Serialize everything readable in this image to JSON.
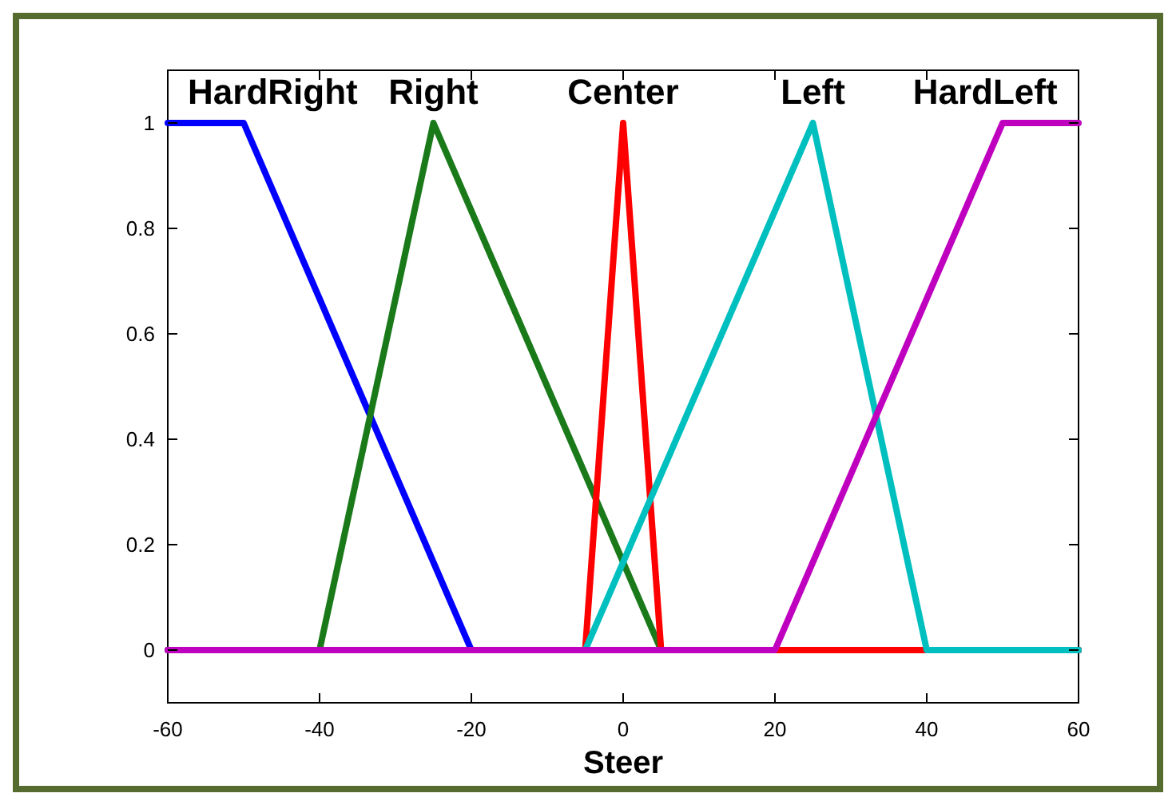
{
  "chart_data": {
    "type": "line",
    "xlabel": "Steer",
    "xlim": [
      -60,
      60
    ],
    "xticks": [
      -60,
      -40,
      -20,
      0,
      20,
      40,
      60
    ],
    "ylim": [
      -0.1,
      1.1
    ],
    "yticks": [
      0,
      0.2,
      0.4,
      0.6,
      0.8,
      1
    ],
    "grid": false,
    "line_style": "solid",
    "series": [
      {
        "name": "HardRight",
        "color": "#0000ff",
        "x": [
          -60,
          -50,
          -20,
          60
        ],
        "values": [
          1,
          1,
          0,
          0
        ]
      },
      {
        "name": "Right",
        "color": "#1a7a1a",
        "x": [
          -60,
          -40,
          -25,
          5,
          60
        ],
        "values": [
          0,
          0,
          1,
          0,
          0
        ]
      },
      {
        "name": "Center",
        "color": "#ff0000",
        "x": [
          -60,
          -5,
          0,
          5,
          60
        ],
        "values": [
          0,
          0,
          1,
          0,
          0
        ]
      },
      {
        "name": "Left",
        "color": "#00bfbf",
        "x": [
          -60,
          -5,
          25,
          40,
          60
        ],
        "values": [
          0,
          0,
          1,
          0,
          0
        ]
      },
      {
        "name": "HardLeft",
        "color": "#bf00bf",
        "x": [
          -60,
          20,
          50,
          60
        ],
        "values": [
          0,
          0,
          1,
          1
        ]
      }
    ]
  }
}
